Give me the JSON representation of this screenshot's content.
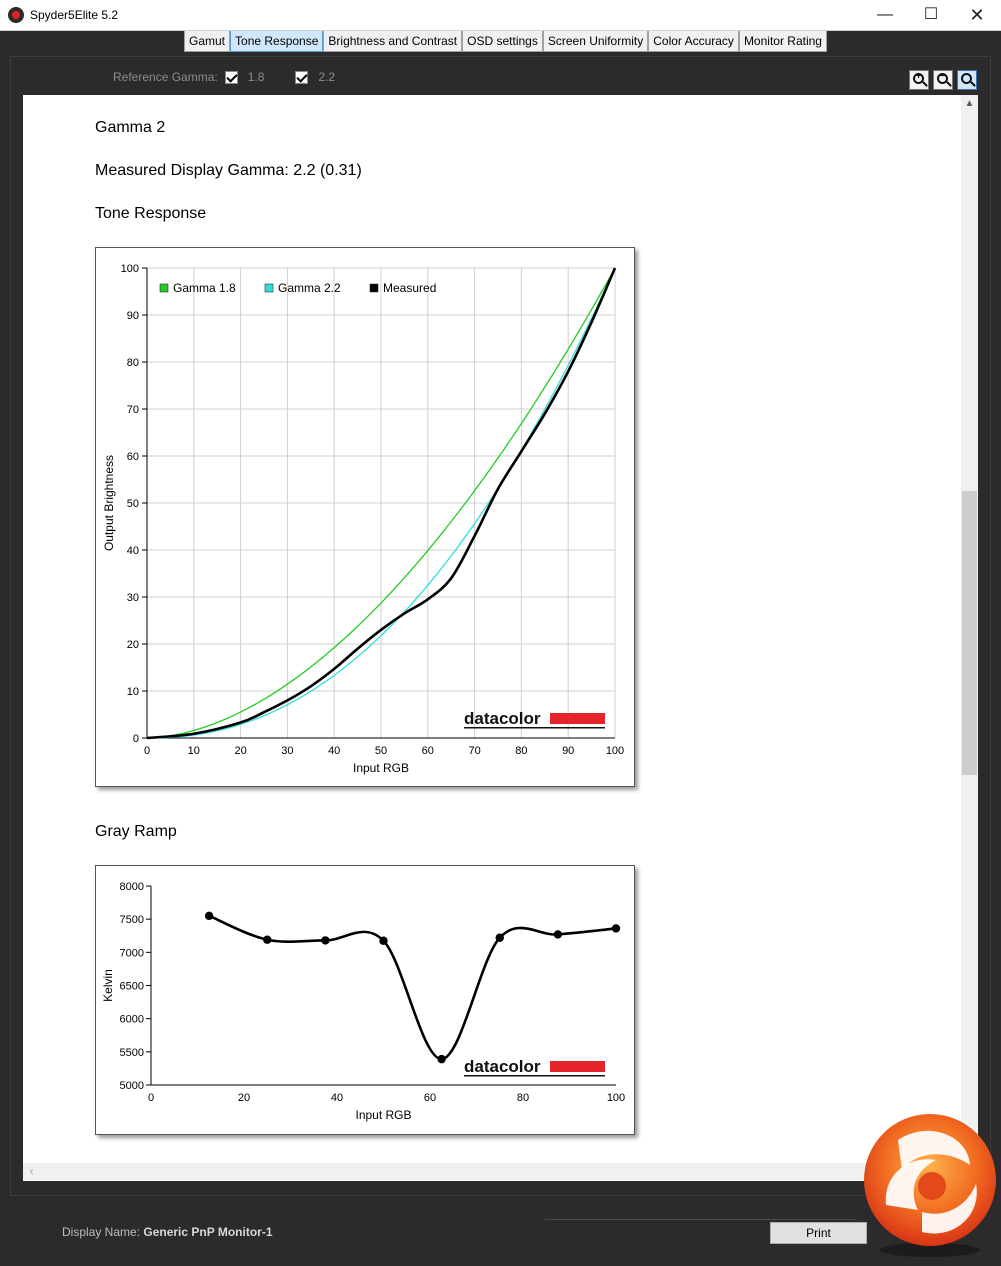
{
  "window": {
    "title": "Spyder5Elite 5.2",
    "minimize": "—",
    "maximize": "☐",
    "close": "✕"
  },
  "tabs": [
    {
      "label": "Gamut"
    },
    {
      "label": "Tone Response",
      "active": true
    },
    {
      "label": "Brightness and Contrast"
    },
    {
      "label": "OSD settings"
    },
    {
      "label": "Screen Uniformity"
    },
    {
      "label": "Color Accuracy"
    },
    {
      "label": "Monitor Rating"
    }
  ],
  "reference_gamma": {
    "label": "Reference Gamma:",
    "options": [
      {
        "value": "1.8",
        "checked": true
      },
      {
        "value": "2.2",
        "checked": true
      }
    ]
  },
  "zoom": {
    "icons": [
      "zoom-in-icon",
      "zoom-out-icon",
      "zoom-fit-icon"
    ],
    "active": "zoom-fit-icon"
  },
  "report": {
    "title": "Gamma 2",
    "measured": "Measured Display Gamma: 2.2 (0.31)",
    "tone_heading": "Tone Response",
    "gray_heading": "Gray Ramp"
  },
  "brand": {
    "watermark": "datacolor",
    "accent": "#e5232b"
  },
  "chart_data": [
    {
      "type": "line",
      "title": "Tone Response",
      "xlabel": "Input RGB",
      "ylabel": "Output Brightness",
      "xlim": [
        0,
        100
      ],
      "ylim": [
        0,
        100
      ],
      "xticks": [
        0,
        10,
        20,
        30,
        40,
        50,
        60,
        70,
        80,
        90,
        100
      ],
      "yticks": [
        0,
        10,
        20,
        30,
        40,
        50,
        60,
        70,
        80,
        90,
        100
      ],
      "grid": true,
      "legend": "top-left",
      "series": [
        {
          "name": "Gamma 1.8",
          "color": "#22cc22",
          "gamma": 1.8
        },
        {
          "name": "Gamma 2.2",
          "color": "#33dddd",
          "gamma": 2.2
        },
        {
          "name": "Measured",
          "color": "#000000",
          "x": [
            0,
            10,
            20,
            25,
            30,
            35,
            40,
            45,
            50,
            55,
            60,
            65,
            70,
            75,
            80,
            85,
            90,
            95,
            100
          ],
          "y": [
            0,
            0.9,
            3.3,
            5.5,
            8,
            11,
            14.7,
            19,
            23,
            26.5,
            29.5,
            34,
            43,
            53,
            61,
            69,
            78,
            88.5,
            100
          ]
        }
      ]
    },
    {
      "type": "line",
      "title": "Gray Ramp",
      "xlabel": "Input RGB",
      "ylabel": "Kelvin",
      "xlim": [
        0,
        100
      ],
      "ylim": [
        5000,
        8000
      ],
      "xticks": [
        0,
        20,
        40,
        60,
        80,
        100
      ],
      "yticks": [
        5000,
        5500,
        6000,
        6500,
        7000,
        7500,
        8000
      ],
      "grid": false,
      "series": [
        {
          "name": "Measured",
          "color": "#000000",
          "x": [
            12.5,
            25,
            37.5,
            50,
            62.5,
            75,
            87.5,
            100
          ],
          "y": [
            7550,
            7190,
            7180,
            7175,
            5390,
            7220,
            7270,
            7360
          ]
        }
      ]
    }
  ],
  "footer": {
    "display_label": "Display Name:",
    "display_value": "Generic PnP Monitor-1",
    "print_label": "Print"
  }
}
